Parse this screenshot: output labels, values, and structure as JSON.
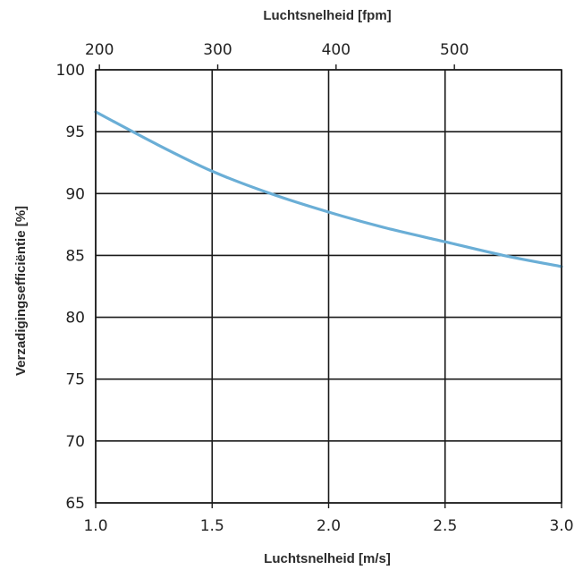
{
  "chart_data": {
    "type": "line",
    "title": "",
    "xlabel": "Luchtsnelheid [m/s]",
    "x2label": "Luchtsnelheid [fpm]",
    "ylabel": "Verzadigingsefficiëntie [%]",
    "xlim": [
      1.0,
      3.0
    ],
    "ylim": [
      65,
      100
    ],
    "x2lim": [
      196.85,
      590.55
    ],
    "x_ticks": [
      "1.0",
      "1.5",
      "2.0",
      "2.5",
      "3.0"
    ],
    "x2_ticks": [
      "200",
      "300",
      "400",
      "500"
    ],
    "y_ticks": [
      "65",
      "70",
      "75",
      "80",
      "85",
      "90",
      "95",
      "100"
    ],
    "grid": true,
    "colors": {
      "series": "#6aaed6",
      "grid": "#1a1a1a"
    },
    "series": [
      {
        "name": "",
        "x": [
          1.0,
          1.25,
          1.5,
          1.75,
          2.0,
          2.25,
          2.5,
          2.75,
          3.0
        ],
        "y": [
          96.6,
          94.1,
          91.8,
          90.0,
          88.5,
          87.2,
          86.1,
          85.0,
          84.1
        ]
      }
    ]
  }
}
